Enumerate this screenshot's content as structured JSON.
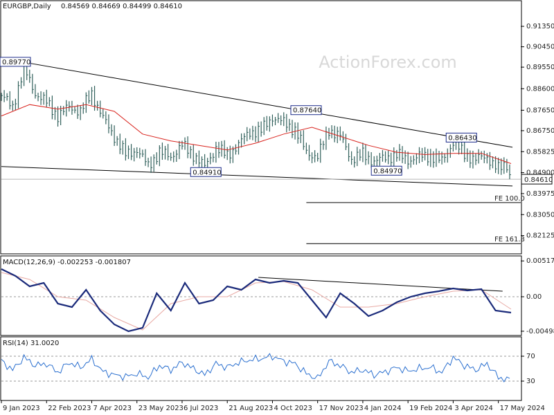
{
  "watermark": "ActionForex.com",
  "chart_data": [
    {
      "type": "line",
      "panel": "price",
      "header": {
        "symbol": "EURGBP,Daily",
        "ohlc": "0.84569 0.84669 0.84499 0.84610"
      },
      "ylim": [
        0.8135,
        0.9245
      ],
      "y_ticks": [
        "0.91350",
        "0.90450",
        "0.89550",
        "0.88600",
        "0.87650",
        "0.86750",
        "0.85825",
        "0.84900",
        "0.83975",
        "0.83050",
        "0.82125"
      ],
      "y_tick_values": [
        0.9135,
        0.9045,
        0.8955,
        0.886,
        0.8765,
        0.8675,
        0.85825,
        0.849,
        0.83975,
        0.8305,
        0.82125
      ],
      "last_price_label": "0.84610",
      "last_price": 0.8461,
      "x_ticks": [
        "9 Jan 2023",
        "22 Feb 2023",
        "7 Apr 2023",
        "23 May 2023",
        "6 Jul 2023",
        "21 Aug 2023",
        "4 Oct 2023",
        "17 Nov 2023",
        "4 Jan 2024",
        "19 Feb 2024",
        "3 Apr 2024",
        "17 May 2024"
      ],
      "x_tick_index": [
        0,
        32,
        64,
        96,
        128,
        160,
        192,
        224,
        256,
        288,
        320,
        352
      ],
      "bars_total": 362,
      "series": [
        {
          "name": "",
          "kind": "close-bars",
          "color": "#2f5f5a",
          "x_index": [
            0,
            8,
            16,
            24,
            32,
            40,
            48,
            56,
            64,
            72,
            80,
            88,
            96,
            104,
            112,
            120,
            128,
            136,
            144,
            152,
            160,
            168,
            176,
            184,
            192,
            200,
            208,
            216,
            224,
            232,
            240,
            248,
            256,
            264,
            272,
            280,
            288,
            296,
            304,
            312,
            320,
            328,
            336,
            344,
            352,
            358,
            361
          ],
          "values": [
            0.883,
            0.878,
            0.895,
            0.884,
            0.88,
            0.874,
            0.878,
            0.876,
            0.884,
            0.873,
            0.865,
            0.857,
            0.859,
            0.852,
            0.858,
            0.856,
            0.861,
            0.857,
            0.8515,
            0.86,
            0.8565,
            0.8615,
            0.867,
            0.8675,
            0.8735,
            0.871,
            0.868,
            0.858,
            0.856,
            0.868,
            0.865,
            0.855,
            0.857,
            0.854,
            0.8555,
            0.857,
            0.8545,
            0.856,
            0.8565,
            0.854,
            0.8625,
            0.857,
            0.855,
            0.856,
            0.8505,
            0.8525,
            0.8461
          ]
        },
        {
          "name": "",
          "kind": "moving-average",
          "color": "#d9221c",
          "x_index": [
            0,
            20,
            40,
            60,
            80,
            100,
            120,
            140,
            160,
            180,
            200,
            220,
            240,
            260,
            280,
            300,
            320,
            340,
            361
          ],
          "values": [
            0.874,
            0.879,
            0.877,
            0.879,
            0.876,
            0.866,
            0.863,
            0.861,
            0.859,
            0.862,
            0.866,
            0.869,
            0.865,
            0.861,
            0.858,
            0.857,
            0.8575,
            0.8575,
            0.853
          ]
        }
      ],
      "level_labels": [
        {
          "text": "0.89770",
          "x_index": 0,
          "y": 0.8977
        },
        {
          "text": "0.87640",
          "x_index": 206,
          "y": 0.8764
        },
        {
          "text": "0.84910",
          "x_index": 135,
          "y": 0.8491
        },
        {
          "text": "0.84970",
          "x_index": 263,
          "y": 0.8497
        },
        {
          "text": "0.86430",
          "x_index": 316,
          "y": 0.8643
        }
      ],
      "trendlines": [
        {
          "from": {
            "x_index": 0,
            "y": 0.8994
          },
          "to": {
            "x_index": 362,
            "y": 0.8602
          }
        },
        {
          "from": {
            "x_index": 0,
            "y": 0.8517
          },
          "to": {
            "x_index": 362,
            "y": 0.8431
          }
        }
      ],
      "projection_lines": [
        {
          "label": "FE 100.0",
          "y": 0.8358,
          "from_index": 216
        },
        {
          "label": "FE 161.8",
          "y": 0.8177,
          "from_index": 216
        }
      ]
    },
    {
      "type": "line",
      "panel": "macd",
      "header": "MACD(12,26,9) -0.002253 -0.001807",
      "ylim": [
        -0.0055,
        0.0058
      ],
      "y_ticks": [
        "0.005176",
        "0.00",
        "-0.004988"
      ],
      "y_tick_values": [
        0.005176,
        0.0,
        -0.004988
      ],
      "series": [
        {
          "name": "",
          "kind": "macd",
          "color": "#1a2a7a",
          "x_index": [
            0,
            10,
            20,
            30,
            40,
            50,
            60,
            70,
            80,
            90,
            100,
            110,
            120,
            130,
            140,
            150,
            160,
            170,
            180,
            190,
            200,
            210,
            220,
            230,
            240,
            250,
            260,
            270,
            280,
            290,
            300,
            310,
            320,
            330,
            340,
            350,
            361
          ],
          "values": [
            0.004,
            0.003,
            0.0015,
            0.002,
            -0.001,
            -0.0015,
            0.001,
            -0.002,
            -0.004,
            -0.005,
            -0.0045,
            0.0005,
            -0.002,
            0.002,
            -0.001,
            -0.0005,
            0.0015,
            0.001,
            0.0025,
            0.002,
            0.0023,
            0.002,
            -0.0005,
            -0.003,
            0.0005,
            -0.001,
            -0.0028,
            -0.002,
            -0.0008,
            0.0,
            0.0005,
            0.0008,
            0.0012,
            0.0009,
            0.0011,
            -0.002,
            -0.0023
          ]
        },
        {
          "name": "",
          "kind": "signal",
          "color": "#e8a9a3",
          "x_index": [
            0,
            20,
            40,
            60,
            80,
            100,
            120,
            140,
            160,
            180,
            200,
            220,
            240,
            260,
            280,
            300,
            320,
            340,
            361
          ],
          "values": [
            0.0035,
            0.0025,
            0.0,
            -0.0005,
            -0.003,
            -0.0048,
            -0.001,
            0.0,
            0.0,
            0.002,
            0.0022,
            0.001,
            -0.0015,
            -0.0015,
            -0.001,
            0.0,
            0.0008,
            0.001,
            -0.0018
          ]
        }
      ],
      "trendlines": [
        {
          "from": {
            "x_index": 182,
            "y": 0.0028
          },
          "to": {
            "x_index": 355,
            "y": 0.0008
          }
        }
      ]
    },
    {
      "type": "line",
      "panel": "rsi",
      "header": "RSI(14) 31.0020",
      "ylim": [
        0,
        100
      ],
      "y_ticks": [
        "70",
        "30"
      ],
      "y_tick_values": [
        70,
        30
      ],
      "series": [
        {
          "name": "",
          "kind": "rsi",
          "color": "#2a6fcf",
          "x_index": [
            0,
            8,
            16,
            24,
            32,
            40,
            48,
            56,
            64,
            72,
            80,
            88,
            96,
            104,
            112,
            120,
            128,
            136,
            144,
            152,
            160,
            168,
            176,
            184,
            192,
            200,
            208,
            216,
            224,
            232,
            240,
            248,
            256,
            264,
            272,
            280,
            288,
            296,
            304,
            312,
            320,
            328,
            336,
            344,
            352,
            361
          ],
          "values": [
            62,
            48,
            68,
            55,
            58,
            44,
            60,
            52,
            65,
            45,
            40,
            37,
            42,
            36,
            55,
            48,
            60,
            50,
            40,
            58,
            52,
            60,
            64,
            66,
            70,
            62,
            58,
            42,
            34,
            62,
            55,
            44,
            48,
            40,
            45,
            52,
            46,
            50,
            52,
            44,
            68,
            55,
            48,
            58,
            36,
            31
          ]
        }
      ]
    }
  ]
}
